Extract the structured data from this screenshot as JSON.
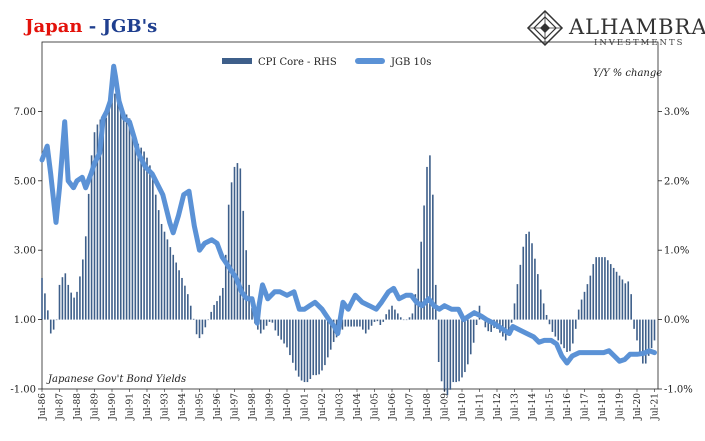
{
  "header": {
    "title_main": "Japan",
    "title_rest": " - JGB's"
  },
  "logo": {
    "name": "ALHAMBRA",
    "subtitle": "INVESTMENTS"
  },
  "colors": {
    "cpi_bar": "#3e5f8a",
    "jgb_line": "#5b92d6",
    "title_red": "#e3120b",
    "title_blue": "#1f3f8f"
  },
  "chart_data": {
    "type": "bar+line",
    "legend": {
      "placement": "top-center",
      "cpi_label": "CPI Core - RHS",
      "jgb_label": "JGB 10s"
    },
    "left_axis": {
      "label": "Japanese Gov't Bond Yields",
      "ticks": [
        "-1.00",
        "1.00",
        "3.00",
        "5.00",
        "7.00"
      ],
      "range": [
        -1,
        9
      ]
    },
    "right_axis": {
      "label": "Y/Y % change",
      "ticks": [
        "-1.0%",
        "0.0%",
        "1.0%",
        "2.0%",
        "3.0%"
      ],
      "range": [
        -1,
        4
      ]
    },
    "x_labels": [
      "Jul-86",
      "Jul-87",
      "Jul-88",
      "Jul-89",
      "Jul-90",
      "Jul-91",
      "Jul-92",
      "Jul-93",
      "Jul-94",
      "Jul-95",
      "Jul-96",
      "Jul-97",
      "Jul-98",
      "Jul-99",
      "Jul-00",
      "Jul-01",
      "Jul-02",
      "Jul-03",
      "Jul-04",
      "Jul-05",
      "Jul-06",
      "Jul-07",
      "Jul-08",
      "Jul-09",
      "Jul-10",
      "Jul-11",
      "Jul-12",
      "Jul-13",
      "Jul-14",
      "Jul-15",
      "Jul-16",
      "Jul-17",
      "Jul-18",
      "Jul-19",
      "Jul-20",
      "Jul-21"
    ],
    "series": [
      {
        "name": "JGB 10s",
        "axis": "left",
        "kind": "line",
        "points": [
          [
            1986.5,
            5.6
          ],
          [
            1986.8,
            6.0
          ],
          [
            1987.0,
            5.2
          ],
          [
            1987.3,
            3.8
          ],
          [
            1987.5,
            4.8
          ],
          [
            1987.8,
            6.7
          ],
          [
            1988.0,
            5.0
          ],
          [
            1988.3,
            4.8
          ],
          [
            1988.5,
            5.0
          ],
          [
            1988.8,
            5.1
          ],
          [
            1989.0,
            4.8
          ],
          [
            1989.3,
            5.2
          ],
          [
            1989.5,
            5.5
          ],
          [
            1989.8,
            5.8
          ],
          [
            1990.0,
            6.8
          ],
          [
            1990.2,
            7.0
          ],
          [
            1990.4,
            7.3
          ],
          [
            1990.6,
            8.3
          ],
          [
            1990.7,
            8.0
          ],
          [
            1990.9,
            7.3
          ],
          [
            1991.2,
            6.8
          ],
          [
            1991.5,
            6.7
          ],
          [
            1991.8,
            6.2
          ],
          [
            1992.0,
            5.8
          ],
          [
            1992.4,
            5.4
          ],
          [
            1992.8,
            5.2
          ],
          [
            1993.0,
            5.0
          ],
          [
            1993.4,
            4.6
          ],
          [
            1993.8,
            3.8
          ],
          [
            1994.0,
            3.5
          ],
          [
            1994.3,
            4.0
          ],
          [
            1994.6,
            4.6
          ],
          [
            1994.9,
            4.7
          ],
          [
            1995.2,
            3.7
          ],
          [
            1995.5,
            3.0
          ],
          [
            1995.8,
            3.2
          ],
          [
            1996.2,
            3.3
          ],
          [
            1996.5,
            3.2
          ],
          [
            1996.8,
            2.8
          ],
          [
            1997.2,
            2.5
          ],
          [
            1997.6,
            2.2
          ],
          [
            1997.9,
            1.8
          ],
          [
            1998.2,
            1.6
          ],
          [
            1998.5,
            1.6
          ],
          [
            1998.8,
            0.9
          ],
          [
            1998.9,
            1.4
          ],
          [
            1999.1,
            2.0
          ],
          [
            1999.4,
            1.6
          ],
          [
            1999.8,
            1.8
          ],
          [
            2000.1,
            1.8
          ],
          [
            2000.5,
            1.7
          ],
          [
            2000.9,
            1.8
          ],
          [
            2001.2,
            1.3
          ],
          [
            2001.5,
            1.3
          ],
          [
            2001.8,
            1.4
          ],
          [
            2002.1,
            1.5
          ],
          [
            2002.5,
            1.3
          ],
          [
            2002.9,
            1.0
          ],
          [
            2003.2,
            0.8
          ],
          [
            2003.4,
            0.6
          ],
          [
            2003.7,
            1.5
          ],
          [
            2004.0,
            1.3
          ],
          [
            2004.4,
            1.7
          ],
          [
            2004.8,
            1.5
          ],
          [
            2005.2,
            1.4
          ],
          [
            2005.6,
            1.3
          ],
          [
            2005.9,
            1.5
          ],
          [
            2006.3,
            1.8
          ],
          [
            2006.6,
            1.9
          ],
          [
            2006.9,
            1.6
          ],
          [
            2007.3,
            1.7
          ],
          [
            2007.6,
            1.7
          ],
          [
            2007.9,
            1.5
          ],
          [
            2008.2,
            1.4
          ],
          [
            2008.6,
            1.6
          ],
          [
            2008.9,
            1.4
          ],
          [
            2009.2,
            1.3
          ],
          [
            2009.5,
            1.4
          ],
          [
            2009.9,
            1.3
          ],
          [
            2010.3,
            1.3
          ],
          [
            2010.6,
            1.0
          ],
          [
            2010.9,
            1.1
          ],
          [
            2011.2,
            1.2
          ],
          [
            2011.6,
            1.1
          ],
          [
            2011.9,
            1.0
          ],
          [
            2012.3,
            0.9
          ],
          [
            2012.6,
            0.8
          ],
          [
            2012.9,
            0.7
          ],
          [
            2013.2,
            0.6
          ],
          [
            2013.4,
            0.8
          ],
          [
            2013.8,
            0.7
          ],
          [
            2014.2,
            0.6
          ],
          [
            2014.6,
            0.5
          ],
          [
            2014.9,
            0.35
          ],
          [
            2015.2,
            0.4
          ],
          [
            2015.6,
            0.4
          ],
          [
            2015.9,
            0.3
          ],
          [
            2016.2,
            -0.05
          ],
          [
            2016.5,
            -0.25
          ],
          [
            2016.8,
            -0.05
          ],
          [
            2017.2,
            0.05
          ],
          [
            2017.6,
            0.05
          ],
          [
            2017.9,
            0.05
          ],
          [
            2018.3,
            0.05
          ],
          [
            2018.6,
            0.05
          ],
          [
            2018.9,
            0.1
          ],
          [
            2019.2,
            -0.05
          ],
          [
            2019.5,
            -0.2
          ],
          [
            2019.8,
            -0.15
          ],
          [
            2020.1,
            0.0
          ],
          [
            2020.5,
            0.0
          ],
          [
            2020.9,
            0.03
          ],
          [
            2021.2,
            0.1
          ],
          [
            2021.5,
            0.05
          ]
        ]
      },
      {
        "name": "CPI Core - RHS",
        "axis": "right",
        "kind": "bar",
        "points": [
          [
            1986.5,
            0.6
          ],
          [
            1986.8,
            0.2
          ],
          [
            1987.0,
            -0.2
          ],
          [
            1987.3,
            -0.1
          ],
          [
            1987.5,
            0.5
          ],
          [
            1987.8,
            0.7
          ],
          [
            1988.0,
            0.5
          ],
          [
            1988.3,
            0.3
          ],
          [
            1988.5,
            0.4
          ],
          [
            1988.8,
            0.8
          ],
          [
            1989.0,
            1.2
          ],
          [
            1989.3,
            2.3
          ],
          [
            1989.5,
            2.7
          ],
          [
            1989.8,
            2.9
          ],
          [
            1990.0,
            2.8
          ],
          [
            1990.3,
            3.0
          ],
          [
            1990.6,
            3.3
          ],
          [
            1990.9,
            3.1
          ],
          [
            1991.2,
            3.0
          ],
          [
            1991.5,
            2.9
          ],
          [
            1991.8,
            2.6
          ],
          [
            1992.1,
            2.5
          ],
          [
            1992.4,
            2.4
          ],
          [
            1992.7,
            2.2
          ],
          [
            1993.0,
            1.8
          ],
          [
            1993.3,
            1.4
          ],
          [
            1993.6,
            1.2
          ],
          [
            1993.9,
            1.0
          ],
          [
            1994.2,
            0.8
          ],
          [
            1994.5,
            0.6
          ],
          [
            1994.8,
            0.4
          ],
          [
            1995.1,
            0.1
          ],
          [
            1995.4,
            -0.3
          ],
          [
            1995.7,
            -0.2
          ],
          [
            1996.0,
            0.0
          ],
          [
            1996.3,
            0.2
          ],
          [
            1996.6,
            0.3
          ],
          [
            1996.9,
            0.5
          ],
          [
            1997.2,
            1.8
          ],
          [
            1997.5,
            2.2
          ],
          [
            1997.8,
            2.3
          ],
          [
            1998.1,
            1.2
          ],
          [
            1998.4,
            0.3
          ],
          [
            1998.7,
            -0.1
          ],
          [
            1999.0,
            -0.2
          ],
          [
            1999.3,
            -0.1
          ],
          [
            1999.6,
            0.0
          ],
          [
            1999.9,
            -0.2
          ],
          [
            2000.2,
            -0.3
          ],
          [
            2000.5,
            -0.4
          ],
          [
            2000.8,
            -0.6
          ],
          [
            2001.1,
            -0.8
          ],
          [
            2001.4,
            -0.9
          ],
          [
            2001.7,
            -0.9
          ],
          [
            2002.0,
            -0.8
          ],
          [
            2002.3,
            -0.8
          ],
          [
            2002.6,
            -0.7
          ],
          [
            2002.9,
            -0.5
          ],
          [
            2003.2,
            -0.3
          ],
          [
            2003.5,
            -0.2
          ],
          [
            2003.8,
            -0.1
          ],
          [
            2004.1,
            -0.1
          ],
          [
            2004.4,
            -0.1
          ],
          [
            2004.7,
            -0.1
          ],
          [
            2005.0,
            -0.2
          ],
          [
            2005.3,
            -0.1
          ],
          [
            2005.6,
            0.0
          ],
          [
            2005.9,
            -0.1
          ],
          [
            2006.2,
            0.1
          ],
          [
            2006.5,
            0.2
          ],
          [
            2006.8,
            0.1
          ],
          [
            2007.1,
            0.0
          ],
          [
            2007.4,
            0.0
          ],
          [
            2007.7,
            0.1
          ],
          [
            2007.9,
            0.5
          ],
          [
            2008.2,
            1.2
          ],
          [
            2008.5,
            2.2
          ],
          [
            2008.7,
            2.4
          ],
          [
            2008.9,
            1.5
          ],
          [
            2009.1,
            -0.5
          ],
          [
            2009.4,
            -1.0
          ],
          [
            2009.7,
            -1.1
          ],
          [
            2010.0,
            -0.9
          ],
          [
            2010.3,
            -0.9
          ],
          [
            2010.6,
            -0.8
          ],
          [
            2010.9,
            -0.6
          ],
          [
            2011.2,
            -0.3
          ],
          [
            2011.5,
            0.2
          ],
          [
            2011.8,
            -0.1
          ],
          [
            2012.1,
            -0.2
          ],
          [
            2012.4,
            -0.1
          ],
          [
            2012.7,
            -0.2
          ],
          [
            2013.0,
            -0.3
          ],
          [
            2013.3,
            -0.1
          ],
          [
            2013.6,
            0.4
          ],
          [
            2013.9,
            0.9
          ],
          [
            2014.1,
            1.2
          ],
          [
            2014.3,
            1.3
          ],
          [
            2014.5,
            1.1
          ],
          [
            2014.8,
            0.7
          ],
          [
            2015.1,
            0.3
          ],
          [
            2015.4,
            0.0
          ],
          [
            2015.7,
            -0.2
          ],
          [
            2016.0,
            -0.3
          ],
          [
            2016.3,
            -0.4
          ],
          [
            2016.6,
            -0.5
          ],
          [
            2016.9,
            -0.3
          ],
          [
            2017.2,
            0.2
          ],
          [
            2017.5,
            0.4
          ],
          [
            2017.8,
            0.6
          ],
          [
            2018.1,
            0.9
          ],
          [
            2018.4,
            0.9
          ],
          [
            2018.7,
            0.9
          ],
          [
            2019.0,
            0.8
          ],
          [
            2019.3,
            0.7
          ],
          [
            2019.6,
            0.6
          ],
          [
            2019.9,
            0.5
          ],
          [
            2020.1,
            0.6
          ],
          [
            2020.3,
            -0.1
          ],
          [
            2020.6,
            -0.4
          ],
          [
            2020.9,
            -0.7
          ],
          [
            2021.2,
            -0.5
          ],
          [
            2021.5,
            -0.3
          ]
        ]
      }
    ],
    "grid": false
  }
}
